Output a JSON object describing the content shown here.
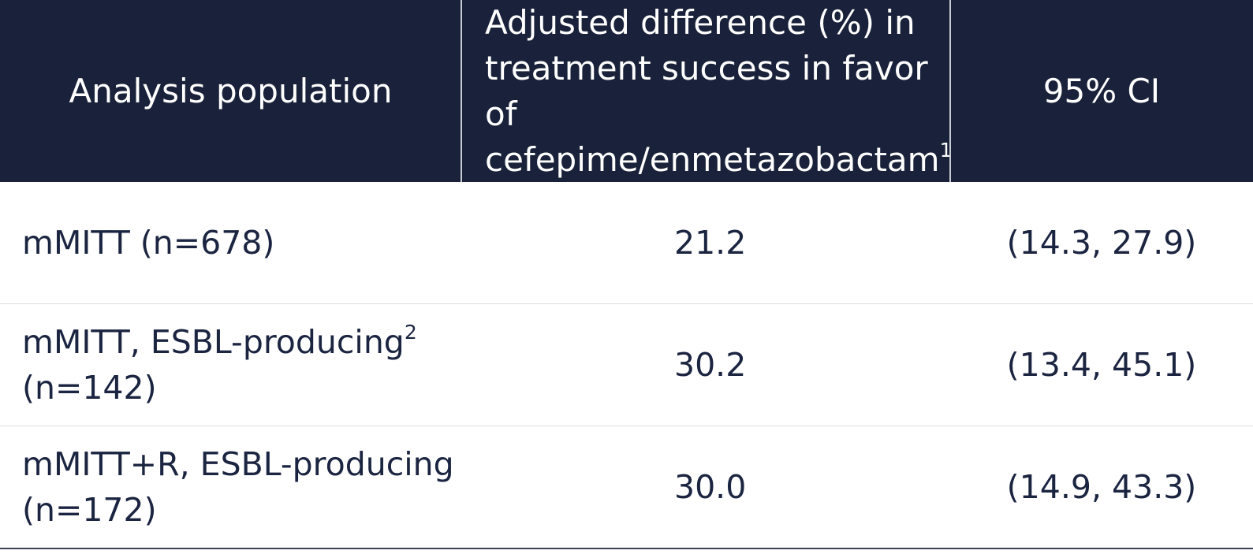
{
  "table": {
    "header": {
      "col1": "Analysis population",
      "col2": {
        "line1": "Adjusted difference (%) in",
        "line2": "treatment success in favor of",
        "line3": "cefepime/enmetazobactam",
        "sup": "1"
      },
      "col3": "95% CI"
    },
    "rows": [
      {
        "population_line1": "mMITT (n=678)",
        "population_sup": "",
        "population_line2": "",
        "difference": "21.2",
        "ci": "(14.3, 27.9)"
      },
      {
        "population_line1": "mMITT, ESBL-producing",
        "population_sup": "2",
        "population_line2": "(n=142)",
        "difference": "30.2",
        "ci": "(13.4, 45.1)"
      },
      {
        "population_line1": "mMITT+R, ESBL-producing",
        "population_sup": "",
        "population_line2": "(n=172)",
        "difference": "30.0",
        "ci": "(14.9, 43.3)"
      }
    ]
  },
  "colors": {
    "header_bg": "#19223a",
    "header_text": "#ffffff",
    "body_text": "#1b2440"
  }
}
